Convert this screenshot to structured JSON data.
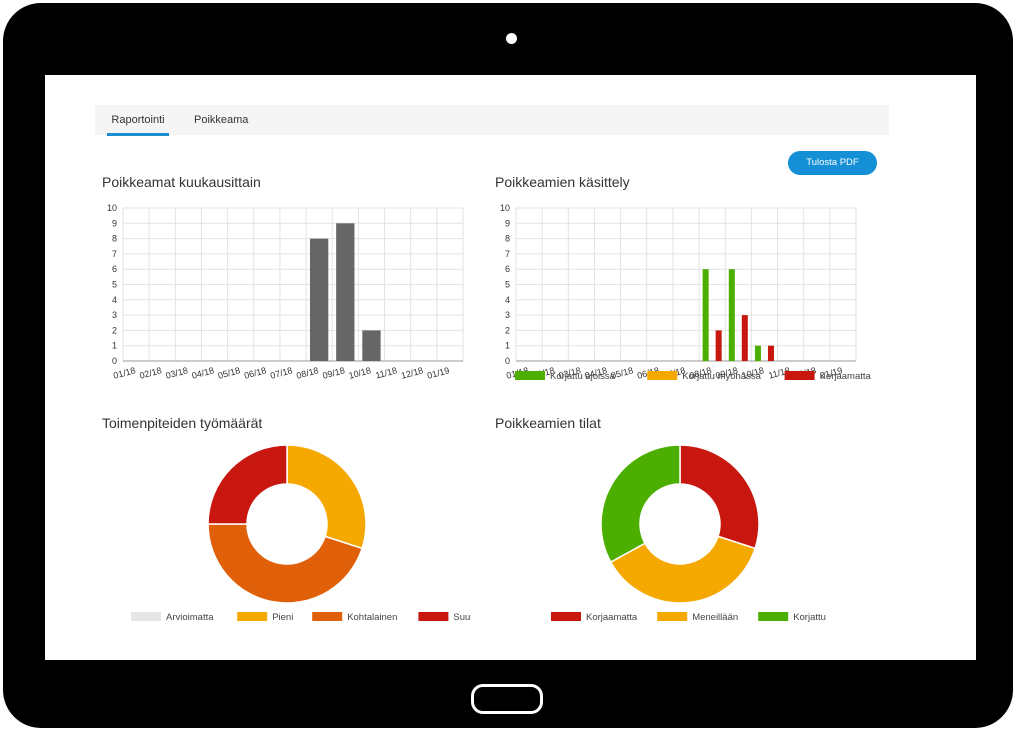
{
  "tabs": [
    {
      "label": "Raportointi",
      "active": true
    },
    {
      "label": "Poikkeama",
      "active": false
    }
  ],
  "pdf_button": "Tulosta PDF",
  "colors": {
    "accent": "#1590d6",
    "gray_bar": "#666666",
    "green": "#4caf00",
    "orange": "#f5a800",
    "red": "#c8170e",
    "dark_orange": "#e0600a",
    "light_gray": "#e6e6e6"
  },
  "chart_data": [
    {
      "type": "bar",
      "title": "Poikkeamat kuukausittain",
      "categories": [
        "01/18",
        "02/18",
        "03/18",
        "04/18",
        "05/18",
        "06/18",
        "07/18",
        "08/18",
        "09/18",
        "10/18",
        "11/18",
        "12/18",
        "01/19"
      ],
      "values": [
        0,
        0,
        0,
        0,
        0,
        0,
        0,
        8,
        9,
        2,
        0,
        0,
        0
      ],
      "ylim": [
        0,
        10
      ],
      "yticks": [
        "0",
        "1",
        "2",
        "3",
        "4",
        "5",
        "6",
        "7",
        "8",
        "9",
        "10"
      ],
      "grid": true
    },
    {
      "type": "bar",
      "title": "Poikkeamien käsittely",
      "categories": [
        "01/18",
        "02/18",
        "03/18",
        "04/18",
        "05/18",
        "06/18",
        "07/18",
        "08/18",
        "09/18",
        "10/18",
        "11/18",
        "12/18",
        "01/19"
      ],
      "series": [
        {
          "name": "Korjattu ajoissa",
          "color": "#4caf00",
          "values": [
            0,
            0,
            0,
            0,
            0,
            0,
            0,
            6,
            6,
            1,
            0,
            0,
            0
          ]
        },
        {
          "name": "Korjattu myöhässä",
          "color": "#f5a800",
          "values": [
            0,
            0,
            0,
            0,
            0,
            0,
            0,
            0,
            0,
            0,
            0,
            0,
            0
          ]
        },
        {
          "name": "Korjaamatta",
          "color": "#c8170e",
          "values": [
            0,
            0,
            0,
            0,
            0,
            0,
            0,
            2,
            3,
            1,
            0,
            0,
            0
          ]
        }
      ],
      "ylim": [
        0,
        10
      ],
      "yticks": [
        "0",
        "1",
        "2",
        "3",
        "4",
        "5",
        "6",
        "7",
        "8",
        "9",
        "10"
      ],
      "grid": true,
      "legend": "bottom"
    },
    {
      "type": "pie",
      "title": "Toimenpiteiden työmäärät",
      "labels": [
        "Arvioimatta",
        "Pieni",
        "Kohtalainen",
        "Suuri"
      ],
      "values": [
        0,
        30,
        45,
        25
      ],
      "colors": [
        "#e6e6e6",
        "#f5a800",
        "#e0600a",
        "#c8170e"
      ],
      "legend": "bottom"
    },
    {
      "type": "pie",
      "title": "Poikkeamien tilat",
      "labels": [
        "Korjaamatta",
        "Meneillään",
        "Korjattu"
      ],
      "values": [
        30,
        37,
        33
      ],
      "colors": [
        "#c8170e",
        "#f5a800",
        "#4caf00"
      ],
      "legend": "bottom"
    }
  ]
}
